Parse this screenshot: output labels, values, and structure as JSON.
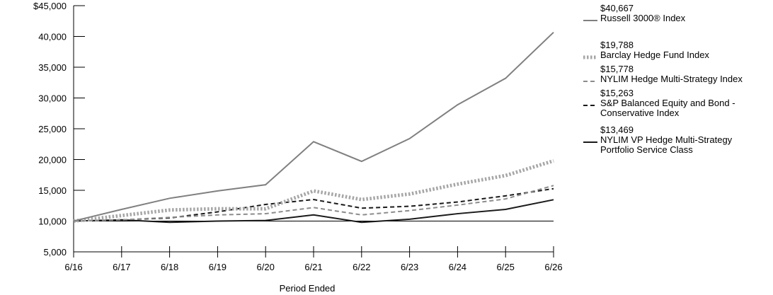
{
  "chart_data": {
    "type": "line",
    "xlabel": "Period Ended",
    "ylabel": "",
    "categories": [
      "6/16",
      "6/17",
      "6/18",
      "6/19",
      "6/20",
      "6/21",
      "6/22",
      "6/23",
      "6/24",
      "6/25",
      "6/26"
    ],
    "ylim": [
      5000,
      45000
    ],
    "yticks": [
      5000,
      10000,
      15000,
      20000,
      25000,
      30000,
      35000,
      40000,
      45000
    ],
    "ytick_labels": [
      "5,000",
      "10,000",
      "15,000",
      "20,000",
      "25,000",
      "30,000",
      "35,000",
      "40,000",
      "$45,000"
    ],
    "reference_line": 10000,
    "legend_placement": "right",
    "series": [
      {
        "name": "Russell 3000® Index",
        "end_label": "$40,667",
        "style": "solid",
        "color": "#808080",
        "values": [
          10000,
          11900,
          13700,
          14900,
          15900,
          22900,
          19700,
          23400,
          28900,
          33200,
          40667
        ]
      },
      {
        "name": "Barclay Hedge Fund Index",
        "end_label": "$19,788",
        "style": "dotted-thick",
        "color": "#a6a6a6",
        "values": [
          10000,
          10900,
          11800,
          12000,
          12000,
          14900,
          13500,
          14400,
          16000,
          17400,
          19788
        ]
      },
      {
        "name": "NYLIM Hedge Multi-Strategy Index",
        "end_label": "$15,778",
        "style": "dashed",
        "color": "#8c8c8c",
        "values": [
          10000,
          10200,
          10600,
          11000,
          11200,
          12200,
          11000,
          11700,
          12600,
          13600,
          15778
        ]
      },
      {
        "name": "S&P Balanced Equity and Bond -\nConservative Index",
        "end_label": "$15,263",
        "style": "dashed",
        "color": "#1a1a1a",
        "values": [
          10000,
          10200,
          10500,
          11500,
          12700,
          13500,
          12100,
          12400,
          13100,
          14100,
          15263
        ]
      },
      {
        "name": "NYLIM VP Hedge Multi-Strategy\nPortfolio Service Class",
        "end_label": "$13,469",
        "style": "solid",
        "color": "#1a1a1a",
        "values": [
          10000,
          10200,
          9800,
          10000,
          10100,
          11000,
          9800,
          10300,
          11200,
          11900,
          13469
        ]
      }
    ]
  }
}
